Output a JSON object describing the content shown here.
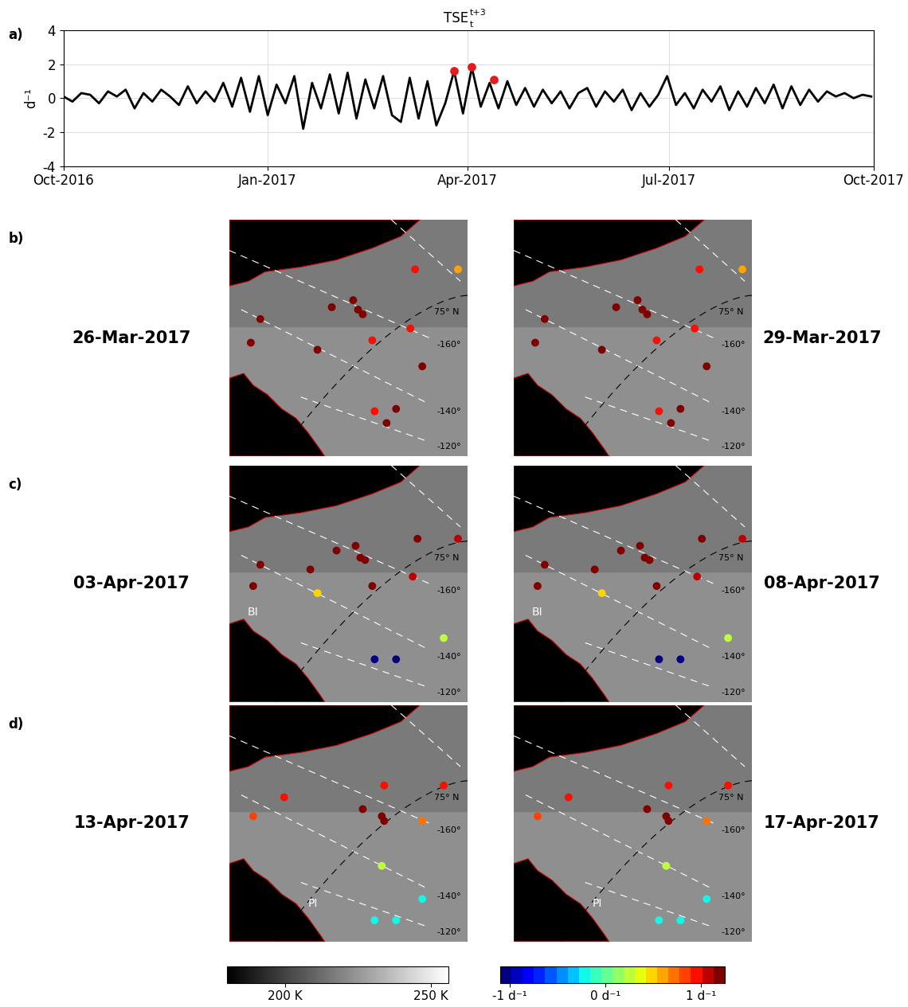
{
  "chart_data": {
    "type": "line",
    "panel_label": "a)",
    "title": "TSE",
    "title_subscript": "t",
    "title_superscript": "t+3",
    "ylabel": "d⁻¹",
    "color": "#000000",
    "grid": true,
    "x": [
      0,
      4,
      8,
      12,
      16,
      20,
      24,
      28,
      32,
      36,
      40,
      44,
      48,
      52,
      56,
      60,
      64,
      68,
      72,
      76,
      80,
      84,
      88,
      92,
      96,
      100,
      104,
      108,
      112,
      116,
      120,
      124,
      128,
      132,
      136,
      140,
      144,
      148,
      152,
      156,
      160,
      164,
      168,
      172,
      176,
      180,
      184,
      188,
      192,
      196,
      200,
      204,
      208,
      212,
      216,
      220,
      224,
      228,
      232,
      236,
      240,
      244,
      248,
      252,
      256,
      260,
      264,
      268,
      272,
      276,
      280,
      284,
      288,
      292,
      296,
      300,
      304,
      308,
      312,
      316,
      320,
      324,
      328,
      332,
      336,
      340,
      344,
      348,
      352,
      356,
      360,
      364
    ],
    "values": [
      0.1,
      -0.2,
      0.3,
      0.2,
      -0.3,
      0.4,
      0.1,
      0.5,
      -0.6,
      0.3,
      -0.2,
      0.5,
      0.1,
      -0.4,
      0.7,
      -0.3,
      0.4,
      -0.2,
      0.9,
      -0.5,
      1.2,
      -0.8,
      1.3,
      -1.0,
      0.8,
      -0.3,
      1.3,
      -1.8,
      0.9,
      -0.6,
      1.4,
      -0.9,
      1.5,
      -1.2,
      1.1,
      -0.6,
      1.3,
      -1.0,
      -1.4,
      1.2,
      -1.2,
      1.0,
      -1.6,
      -0.3,
      1.6,
      -0.9,
      1.8,
      -0.5,
      0.9,
      -0.6,
      1.0,
      -0.4,
      0.6,
      -0.5,
      0.5,
      -0.3,
      0.4,
      -0.6,
      0.3,
      0.6,
      -0.5,
      0.4,
      -0.2,
      0.5,
      -0.7,
      0.3,
      -0.5,
      0.2,
      1.3,
      -0.4,
      0.3,
      -0.6,
      0.5,
      -0.2,
      0.7,
      -0.7,
      0.4,
      -0.5,
      0.6,
      -0.3,
      0.8,
      -0.6,
      0.7,
      -0.4,
      0.5,
      -0.2,
      0.4,
      0.1,
      0.3,
      0.0,
      0.2,
      0.1
    ],
    "highlight": {
      "x": [
        176,
        184,
        194
      ],
      "values": [
        1.6,
        1.85,
        1.1
      ],
      "color": "#e41a1c"
    },
    "xlim": [
      0,
      365
    ],
    "xticks": [
      {
        "value": 0,
        "label": "Oct-2016"
      },
      {
        "value": 92,
        "label": "Jan-2017"
      },
      {
        "value": 182,
        "label": "Apr-2017"
      },
      {
        "value": 273,
        "label": "Jul-2017"
      },
      {
        "value": 365,
        "label": "Oct-2017"
      }
    ],
    "ylim": [
      -4,
      4
    ],
    "yticks": [
      -4,
      -2,
      0,
      2,
      4
    ]
  },
  "maps": {
    "xlim": [
      0,
      1
    ],
    "ylim": [
      0,
      1
    ],
    "graticule_labels": [
      {
        "text": "75° N",
        "lat": true
      },
      {
        "text": "-160°"
      },
      {
        "text": "-140°"
      },
      {
        "text": "-120°"
      }
    ],
    "rows": [
      {
        "panel_label": "b)",
        "place_label": null,
        "x": [
          0.43,
          0.52,
          0.54,
          0.56,
          0.78,
          0.96,
          0.13,
          0.09,
          0.37,
          0.6,
          0.76,
          0.81,
          0.61,
          0.66,
          0.7
        ],
        "y": [
          0.63,
          0.66,
          0.62,
          0.6,
          0.79,
          0.79,
          0.58,
          0.48,
          0.45,
          0.49,
          0.54,
          0.38,
          0.19,
          0.14,
          0.2
        ],
        "panels": [
          {
            "date": "26-Mar-2017",
            "values": [
              1.2,
              1.2,
              1.2,
              1.2,
              0.9,
              0.6,
              1.2,
              1.2,
              1.2,
              1.0,
              0.9,
              1.2,
              1.0,
              1.2,
              1.2
            ]
          },
          {
            "date": "29-Mar-2017",
            "values": [
              1.2,
              1.2,
              1.2,
              1.2,
              0.9,
              0.6,
              1.2,
              1.2,
              1.2,
              1.0,
              0.9,
              1.2,
              1.0,
              1.2,
              1.2
            ]
          }
        ]
      },
      {
        "panel_label": "c)",
        "place_label": "BI",
        "x": [
          0.53,
          0.45,
          0.55,
          0.57,
          0.79,
          0.96,
          0.13,
          0.1,
          0.34,
          0.6,
          0.77,
          0.37,
          0.9,
          0.61,
          0.7
        ],
        "y": [
          0.66,
          0.64,
          0.61,
          0.6,
          0.69,
          0.69,
          0.58,
          0.49,
          0.56,
          0.49,
          0.53,
          0.46,
          0.27,
          0.18,
          0.18
        ],
        "panels": [
          {
            "date": "03-Apr-2017",
            "values": [
              1.2,
              1.2,
              1.2,
              1.2,
              1.2,
              1.1,
              1.2,
              1.2,
              1.2,
              1.2,
              1.1,
              0.5,
              0.3,
              -1.0,
              -1.0
            ]
          },
          {
            "date": "08-Apr-2017",
            "values": [
              1.2,
              1.2,
              1.2,
              1.2,
              1.2,
              1.1,
              1.2,
              1.2,
              1.2,
              1.2,
              1.1,
              0.5,
              0.3,
              -1.0,
              -1.0
            ]
          }
        ]
      },
      {
        "panel_label": "d)",
        "place_label": "PI",
        "x": [
          0.23,
          0.1,
          0.56,
          0.65,
          0.64,
          0.65,
          0.9,
          0.81,
          0.64,
          0.81,
          0.61,
          0.7
        ],
        "y": [
          0.61,
          0.53,
          0.56,
          0.66,
          0.53,
          0.51,
          0.66,
          0.51,
          0.32,
          0.18,
          0.09,
          0.09
        ],
        "panels": [
          {
            "date": "13-Apr-2017",
            "values": [
              0.9,
              0.8,
              1.2,
              0.9,
              1.2,
              1.2,
              0.9,
              0.7,
              0.3,
              -0.2,
              -0.2,
              -0.2
            ]
          },
          {
            "date": "17-Apr-2017",
            "values": [
              0.9,
              0.8,
              1.2,
              0.9,
              1.2,
              1.2,
              0.9,
              0.7,
              0.3,
              -0.2,
              -0.2,
              -0.2
            ]
          }
        ]
      }
    ],
    "temperature_colorbar": {
      "range": [
        180,
        256
      ],
      "ticks": [
        {
          "value": 200,
          "label": "200 K"
        },
        {
          "value": 250,
          "label": "250 K"
        }
      ]
    },
    "tse_colorbar": {
      "range": [
        -1.1,
        1.25
      ],
      "ticks": [
        {
          "value": -1,
          "label": "-1 d⁻¹"
        },
        {
          "value": 0,
          "label": "0 d⁻¹"
        },
        {
          "value": 1,
          "label": "1 d⁻¹"
        }
      ]
    }
  }
}
